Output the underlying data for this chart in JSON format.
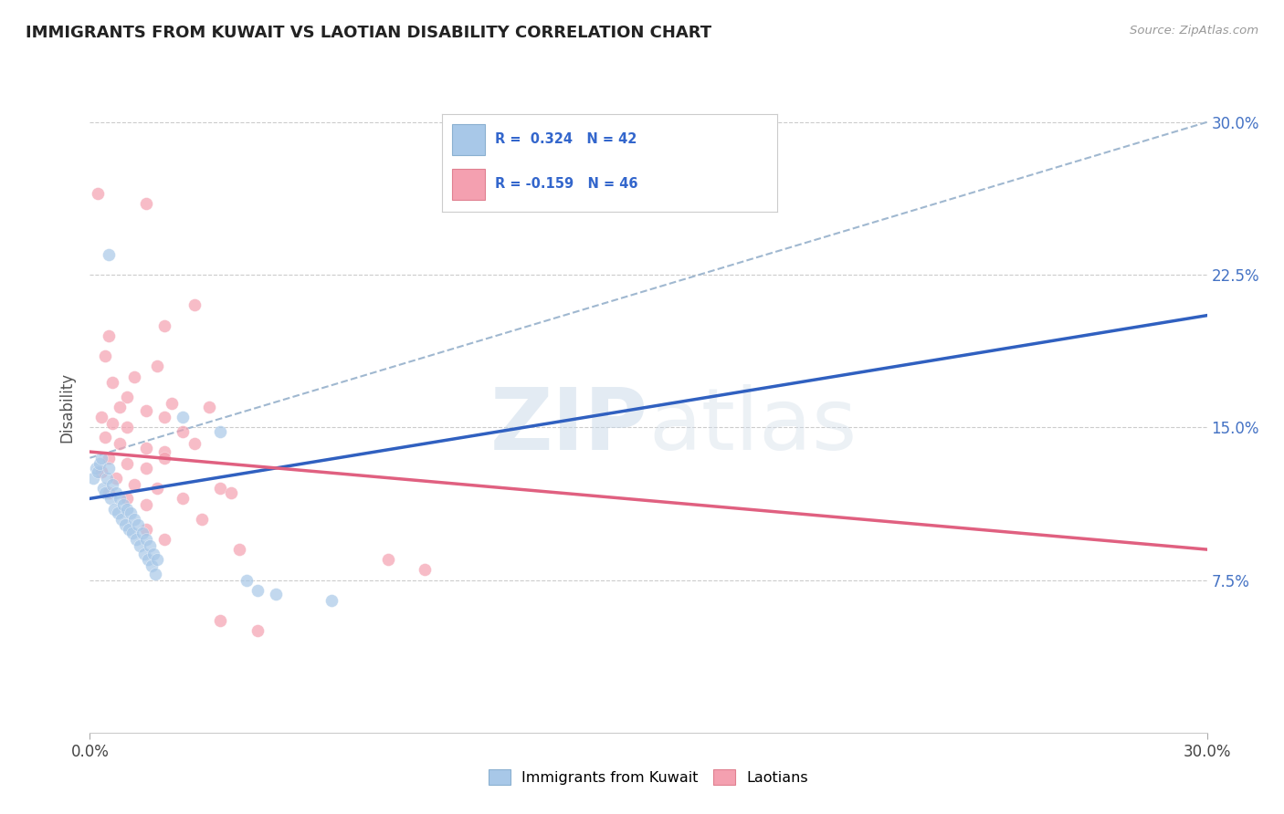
{
  "title": "IMMIGRANTS FROM KUWAIT VS LAOTIAN DISABILITY CORRELATION CHART",
  "source": "Source: ZipAtlas.com",
  "ylabel": "Disability",
  "xlim": [
    0.0,
    30.0
  ],
  "ylim": [
    0.0,
    32.0
  ],
  "yticks": [
    7.5,
    15.0,
    22.5,
    30.0
  ],
  "ytick_labels": [
    "7.5%",
    "15.0%",
    "22.5%",
    "30.0%"
  ],
  "kuwait_color": "#a8c8e8",
  "laotian_color": "#f4a0b0",
  "kuwait_line_color": "#3060c0",
  "laotian_line_color": "#e06080",
  "diag_color": "#a0b8d0",
  "watermark_color": "#d0dce8",
  "kuwait_line": [
    [
      0.0,
      11.5
    ],
    [
      30.0,
      20.5
    ]
  ],
  "laotian_line": [
    [
      0.0,
      13.8
    ],
    [
      30.0,
      9.0
    ]
  ],
  "diag_line": [
    [
      0.0,
      13.5
    ],
    [
      30.0,
      30.0
    ]
  ],
  "kuwait_points": [
    [
      0.1,
      12.5
    ],
    [
      0.15,
      13.0
    ],
    [
      0.2,
      12.8
    ],
    [
      0.25,
      13.2
    ],
    [
      0.3,
      13.5
    ],
    [
      0.35,
      12.0
    ],
    [
      0.4,
      11.8
    ],
    [
      0.45,
      12.5
    ],
    [
      0.5,
      13.0
    ],
    [
      0.55,
      11.5
    ],
    [
      0.6,
      12.2
    ],
    [
      0.65,
      11.0
    ],
    [
      0.7,
      11.8
    ],
    [
      0.75,
      10.8
    ],
    [
      0.8,
      11.5
    ],
    [
      0.85,
      10.5
    ],
    [
      0.9,
      11.2
    ],
    [
      0.95,
      10.2
    ],
    [
      1.0,
      11.0
    ],
    [
      1.05,
      10.0
    ],
    [
      1.1,
      10.8
    ],
    [
      1.15,
      9.8
    ],
    [
      1.2,
      10.5
    ],
    [
      1.25,
      9.5
    ],
    [
      1.3,
      10.2
    ],
    [
      1.35,
      9.2
    ],
    [
      1.4,
      9.8
    ],
    [
      1.45,
      8.8
    ],
    [
      1.5,
      9.5
    ],
    [
      1.55,
      8.5
    ],
    [
      1.6,
      9.2
    ],
    [
      1.65,
      8.2
    ],
    [
      1.7,
      8.8
    ],
    [
      1.75,
      7.8
    ],
    [
      1.8,
      8.5
    ],
    [
      0.5,
      23.5
    ],
    [
      2.5,
      15.5
    ],
    [
      3.5,
      14.8
    ],
    [
      4.5,
      7.0
    ],
    [
      4.2,
      7.5
    ],
    [
      5.0,
      6.8
    ],
    [
      6.5,
      6.5
    ]
  ],
  "laotian_points": [
    [
      0.2,
      26.5
    ],
    [
      1.5,
      26.0
    ],
    [
      2.8,
      21.0
    ],
    [
      0.5,
      19.5
    ],
    [
      2.0,
      20.0
    ],
    [
      0.4,
      18.5
    ],
    [
      1.8,
      18.0
    ],
    [
      0.6,
      17.2
    ],
    [
      1.2,
      17.5
    ],
    [
      1.0,
      16.5
    ],
    [
      2.2,
      16.2
    ],
    [
      0.8,
      16.0
    ],
    [
      1.5,
      15.8
    ],
    [
      3.2,
      16.0
    ],
    [
      0.3,
      15.5
    ],
    [
      0.6,
      15.2
    ],
    [
      1.0,
      15.0
    ],
    [
      2.0,
      15.5
    ],
    [
      2.5,
      14.8
    ],
    [
      0.4,
      14.5
    ],
    [
      0.8,
      14.2
    ],
    [
      1.5,
      14.0
    ],
    [
      2.0,
      13.8
    ],
    [
      2.8,
      14.2
    ],
    [
      0.5,
      13.5
    ],
    [
      1.0,
      13.2
    ],
    [
      1.5,
      13.0
    ],
    [
      2.0,
      13.5
    ],
    [
      0.3,
      12.8
    ],
    [
      0.7,
      12.5
    ],
    [
      1.2,
      12.2
    ],
    [
      1.8,
      12.0
    ],
    [
      0.5,
      11.8
    ],
    [
      1.0,
      11.5
    ],
    [
      1.5,
      11.2
    ],
    [
      2.5,
      11.5
    ],
    [
      3.5,
      12.0
    ],
    [
      3.8,
      11.8
    ],
    [
      4.0,
      9.0
    ],
    [
      8.0,
      8.5
    ],
    [
      9.0,
      8.0
    ],
    [
      3.5,
      5.5
    ],
    [
      4.5,
      5.0
    ],
    [
      2.0,
      9.5
    ],
    [
      1.5,
      10.0
    ],
    [
      3.0,
      10.5
    ]
  ]
}
